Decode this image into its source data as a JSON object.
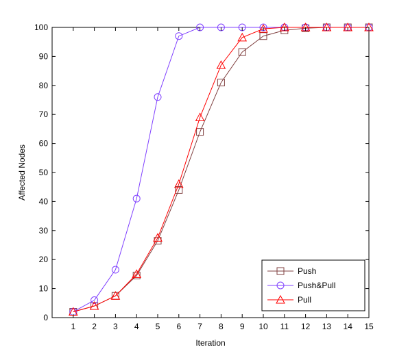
{
  "chart_data": {
    "type": "line",
    "title": "",
    "xlabel": "Iteration",
    "ylabel": "Affected Nodes",
    "x": [
      1,
      2,
      3,
      4,
      5,
      6,
      7,
      8,
      9,
      10,
      11,
      12,
      13,
      14,
      15
    ],
    "xlim": [
      0,
      15
    ],
    "ylim": [
      0,
      100
    ],
    "xticks": [
      1,
      2,
      3,
      4,
      5,
      6,
      7,
      8,
      9,
      10,
      11,
      12,
      13,
      14,
      15
    ],
    "yticks": [
      0,
      10,
      20,
      30,
      40,
      50,
      60,
      70,
      80,
      90,
      100
    ],
    "grid": false,
    "legend_position": "bottom-right",
    "series": [
      {
        "name": "Push",
        "color": "#7f3f3f",
        "marker": "square",
        "values": [
          2,
          4,
          7.5,
          14.5,
          26.5,
          44,
          64,
          81,
          91.5,
          97,
          99,
          99.7,
          100,
          100,
          100
        ]
      },
      {
        "name": "Push&Pull",
        "color": "#7f3fff",
        "marker": "circle",
        "values": [
          2,
          6,
          16.5,
          41,
          76,
          97,
          100,
          100,
          100,
          100,
          100,
          100,
          100,
          100,
          100
        ]
      },
      {
        "name": "Pull",
        "color": "#ff0000",
        "marker": "triangle",
        "values": [
          2,
          4,
          7.5,
          15,
          27.5,
          46,
          69,
          87,
          96.5,
          99.5,
          100,
          100,
          100,
          100,
          100
        ]
      }
    ]
  }
}
